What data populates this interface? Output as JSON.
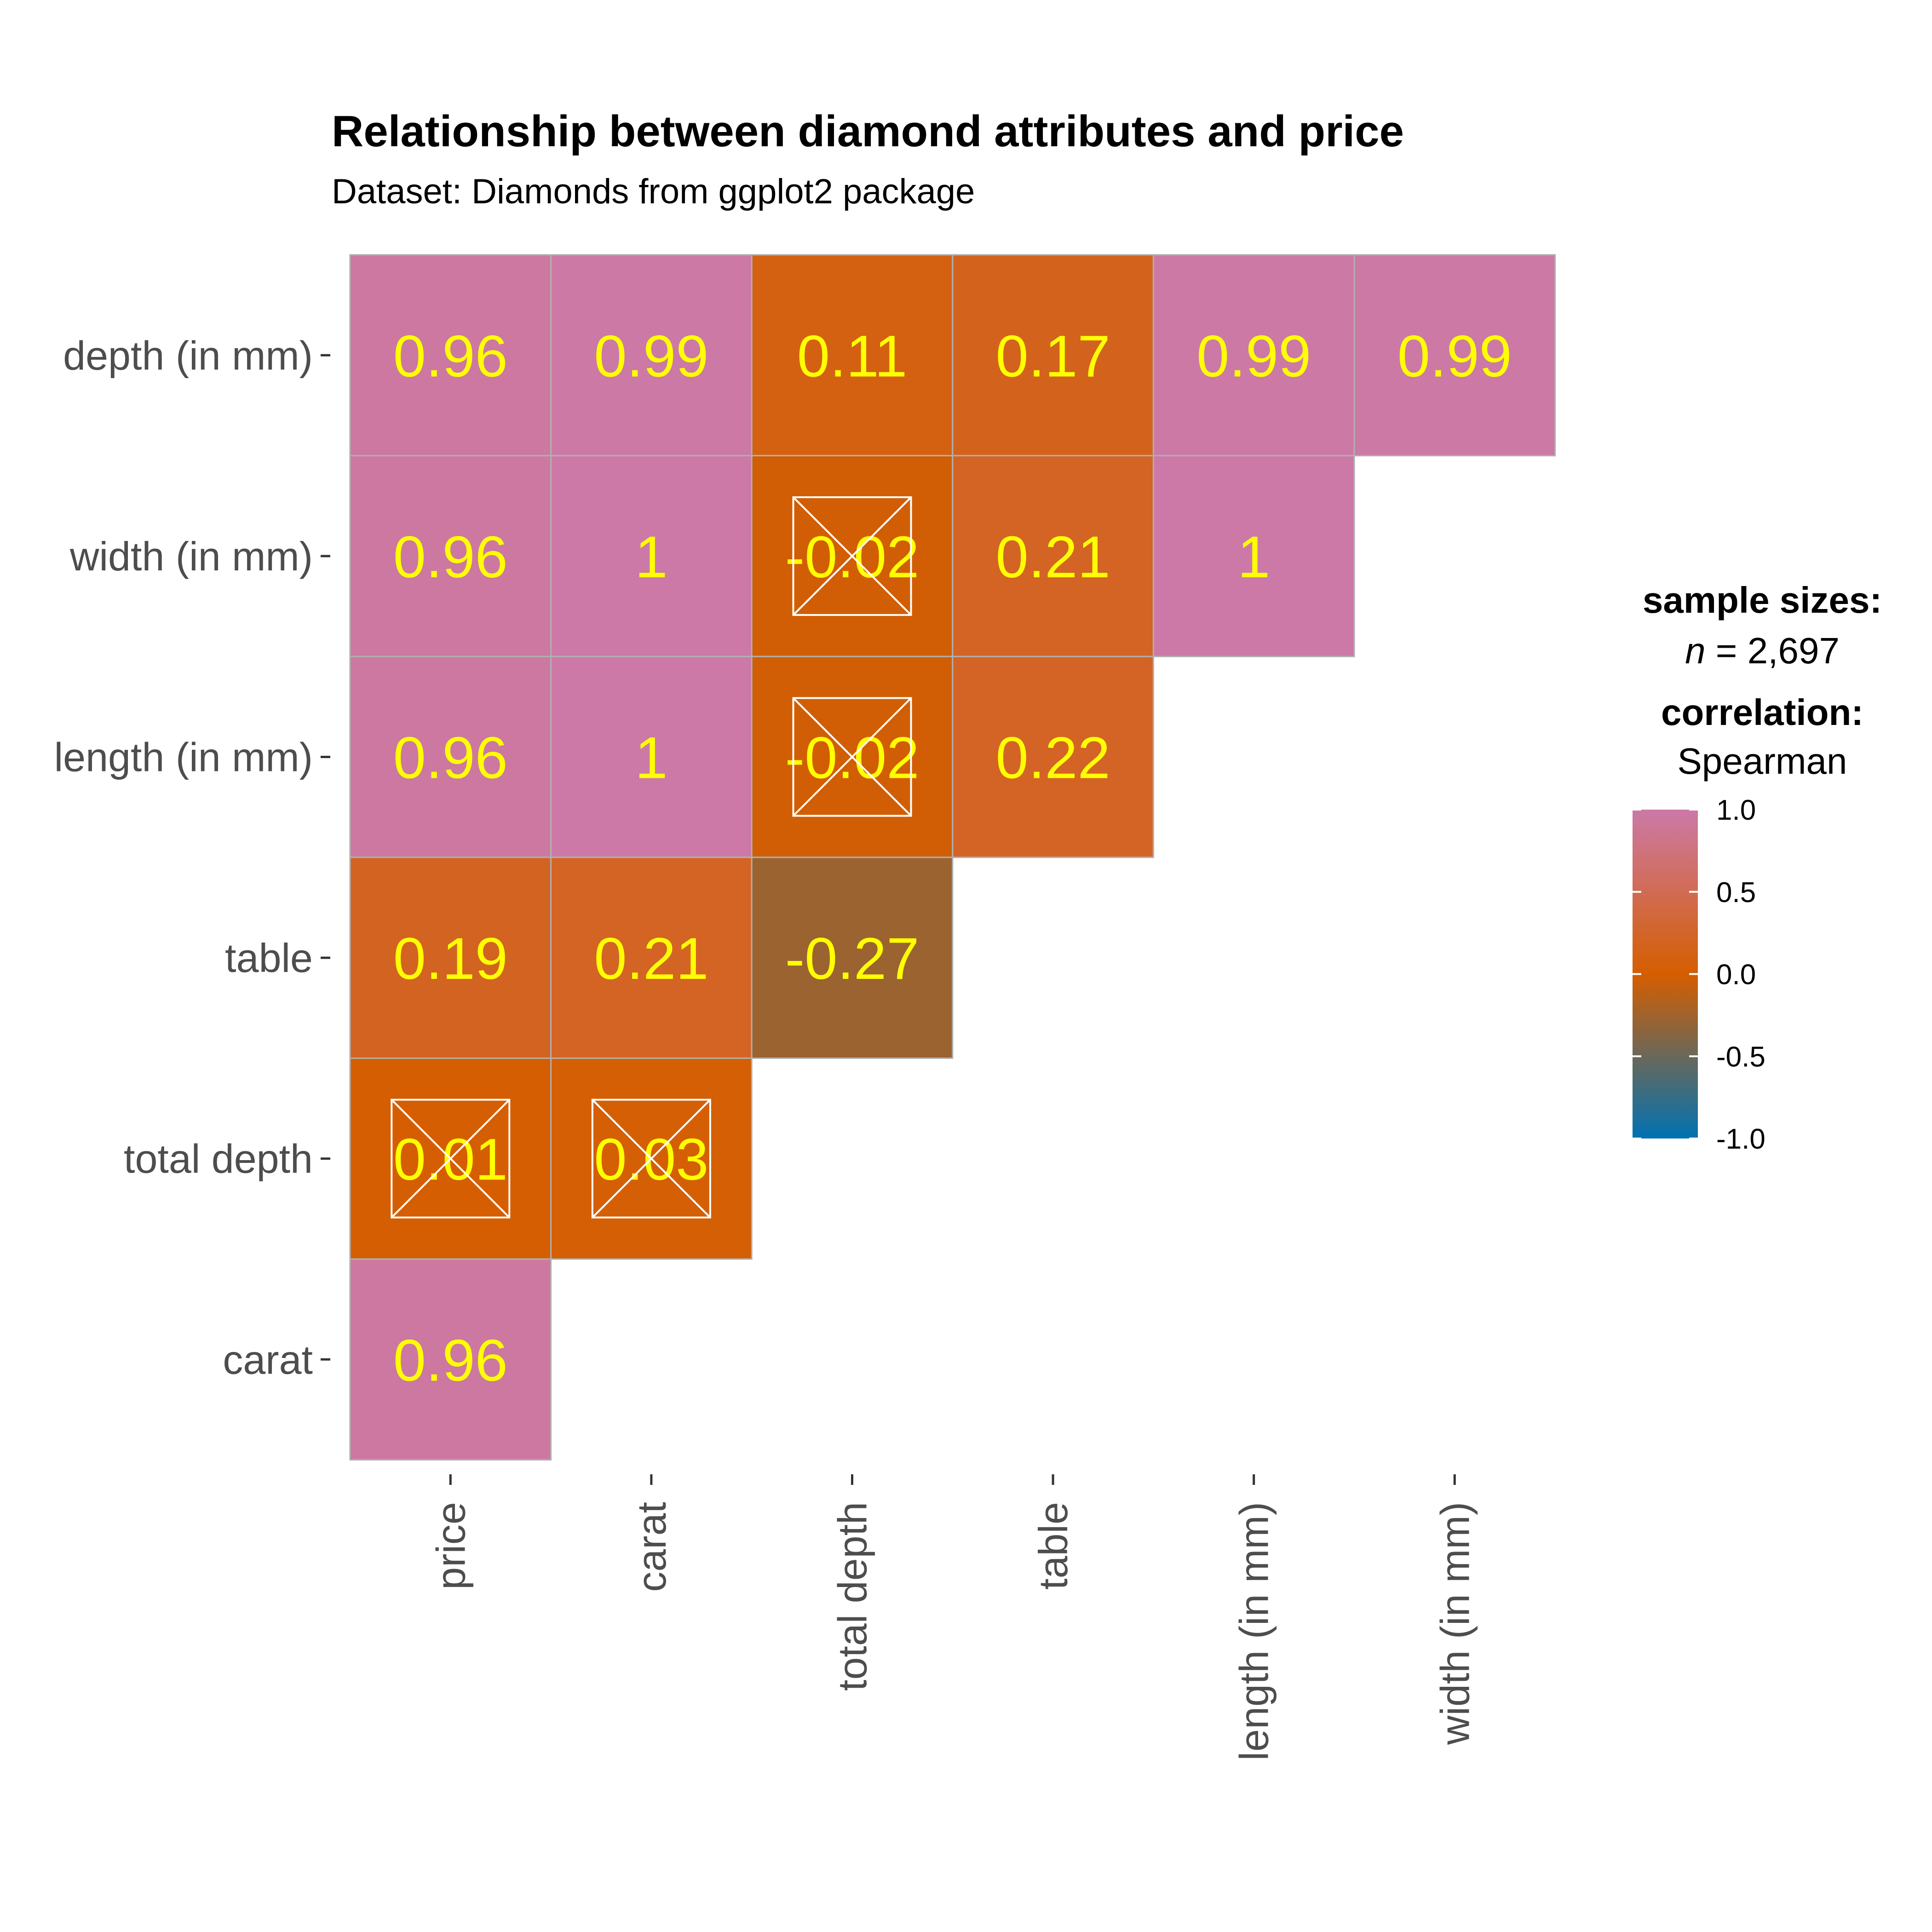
{
  "chart_data": {
    "type": "heatmap",
    "title": "Relationship between diamond attributes and price",
    "subtitle": "Dataset: Diamonds from ggplot2 package",
    "rows": [
      "depth (in mm)",
      "width (in mm)",
      "length (in mm)",
      "table",
      "total depth",
      "carat"
    ],
    "columns": [
      "price",
      "carat",
      "total depth",
      "table",
      "length (in mm)",
      "width (in mm)"
    ],
    "values": [
      [
        0.96,
        0.99,
        0.11,
        0.17,
        0.99,
        0.99
      ],
      [
        0.96,
        1,
        -0.02,
        0.21,
        1,
        null
      ],
      [
        0.96,
        1,
        -0.02,
        0.22,
        null,
        null
      ],
      [
        0.19,
        0.21,
        -0.27,
        null,
        null,
        null
      ],
      [
        0.01,
        0.03,
        null,
        null,
        null,
        null
      ],
      [
        0.96,
        null,
        null,
        null,
        null,
        null
      ]
    ],
    "labels": [
      [
        "0.96",
        "0.99",
        "0.11",
        "0.17",
        "0.99",
        "0.99"
      ],
      [
        "0.96",
        "1",
        "-0.02",
        "0.21",
        "1",
        null
      ],
      [
        "0.96",
        "1",
        "-0.02",
        "0.22",
        null,
        null
      ],
      [
        "0.19",
        "0.21",
        "-0.27",
        null,
        null,
        null
      ],
      [
        "0.01",
        "0.03",
        null,
        null,
        null,
        null
      ],
      [
        "0.96",
        null,
        null,
        null,
        null,
        null
      ]
    ],
    "non_significant": [
      [
        false,
        false,
        false,
        false,
        false,
        false
      ],
      [
        false,
        false,
        true,
        false,
        false,
        null
      ],
      [
        false,
        false,
        true,
        false,
        null,
        null
      ],
      [
        false,
        false,
        false,
        null,
        null,
        null
      ],
      [
        true,
        true,
        null,
        null,
        null,
        null
      ],
      [
        false,
        null,
        null,
        null,
        null,
        null
      ]
    ],
    "legend": {
      "sample_title": "sample sizes:",
      "n_label": "n",
      "n_value": "= 2,697",
      "corr_title": "correlation:",
      "corr_method": "Spearman",
      "ticks": [
        1.0,
        0.5,
        0.0,
        -0.5,
        -1.0
      ],
      "tick_labels": [
        "1.0",
        "0.5",
        "0.0",
        "-0.5",
        "-1.0"
      ],
      "range": [
        -1,
        1
      ],
      "placement": "right"
    },
    "colors": {
      "high": "#CC79A7",
      "mid": "#D55E00",
      "low": "#0072B2",
      "label": "#FFFF00",
      "cross": "#FFFFFF",
      "border": "#B0B0B0"
    }
  }
}
